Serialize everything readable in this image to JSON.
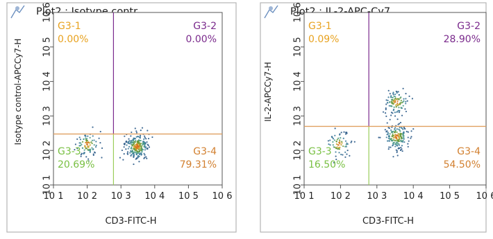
{
  "chart_data": [
    {
      "type": "scatter",
      "title": "Plot2 : Isotype contr...",
      "xlabel": "CD3-FITC-H",
      "ylabel": "Isotype control-APCCy7-H",
      "x_scale": "log",
      "y_scale": "log",
      "xlim": [
        10,
        1000000
      ],
      "ylim": [
        10,
        1000000
      ],
      "x_ticks": [
        "10 1",
        "10 2",
        "10 3",
        "10 4",
        "10 5",
        "10 6"
      ],
      "y_ticks": [
        "10 1",
        "10 2",
        "10 3",
        "10 4",
        "10 5",
        "10 6"
      ],
      "gate": {
        "x": 600,
        "y": 300
      },
      "quadrants": [
        {
          "id": "G3-1",
          "value": "0.00%",
          "position": "top-left",
          "color": "#e8a21f"
        },
        {
          "id": "G3-2",
          "value": "0.00%",
          "position": "top-right",
          "color": "#7a2a8c"
        },
        {
          "id": "G3-3",
          "value": "20.69%",
          "position": "bottom-left",
          "color": "#79c043"
        },
        {
          "id": "G3-4",
          "value": "79.31%",
          "position": "bottom-right",
          "color": "#d28030"
        }
      ],
      "clusters": [
        {
          "x": 100,
          "y": 150,
          "n": 90
        },
        {
          "x": 3000,
          "y": 130,
          "n": 260
        }
      ]
    },
    {
      "type": "scatter",
      "title": "Plot2 : IL-2-APC-Cy7...",
      "xlabel": "CD3-FITC-H",
      "ylabel": "IL-2-APCCy7-H",
      "x_scale": "log",
      "y_scale": "log",
      "xlim": [
        10,
        1000000
      ],
      "ylim": [
        10,
        1000000
      ],
      "x_ticks": [
        "10 1",
        "10 2",
        "10 3",
        "10 4",
        "10 5",
        "10 6"
      ],
      "y_ticks": [
        "10 1",
        "10 2",
        "10 3",
        "10 4",
        "10 5",
        "10 6"
      ],
      "gate": {
        "x": 600,
        "y": 500
      },
      "quadrants": [
        {
          "id": "G3-1",
          "value": "0.09%",
          "position": "top-left",
          "color": "#e8a21f"
        },
        {
          "id": "G3-2",
          "value": "28.90%",
          "position": "top-right",
          "color": "#7a2a8c"
        },
        {
          "id": "G3-3",
          "value": "16.50%",
          "position": "bottom-left",
          "color": "#79c043"
        },
        {
          "id": "G3-4",
          "value": "54.50%",
          "position": "bottom-right",
          "color": "#d28030"
        }
      ],
      "clusters": [
        {
          "x": 90,
          "y": 150,
          "n": 70
        },
        {
          "x": 3500,
          "y": 250,
          "n": 180
        },
        {
          "x": 3500,
          "y": 2500,
          "n": 110
        }
      ]
    }
  ]
}
